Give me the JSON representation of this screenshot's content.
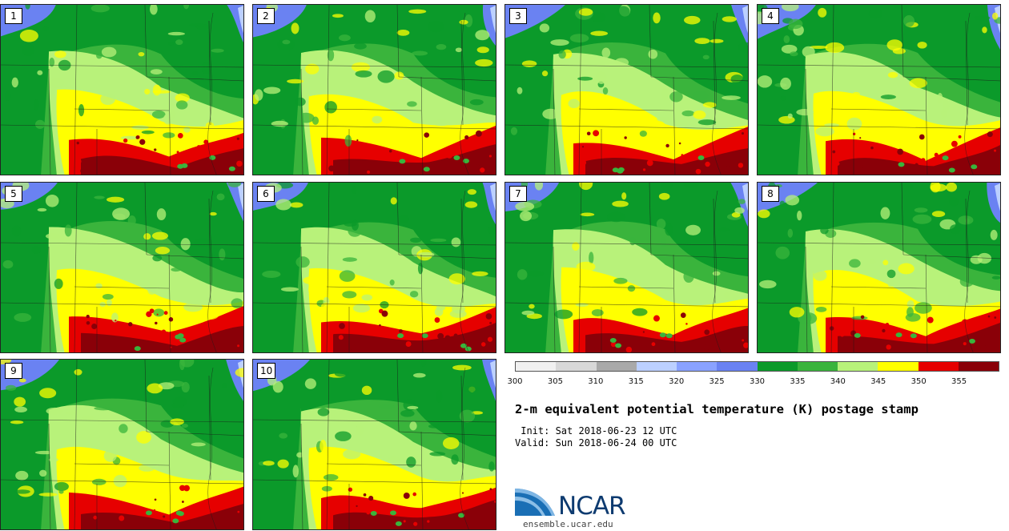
{
  "panels": [
    {
      "label": "1"
    },
    {
      "label": "2"
    },
    {
      "label": "3"
    },
    {
      "label": "4"
    },
    {
      "label": "5"
    },
    {
      "label": "6"
    },
    {
      "label": "7"
    },
    {
      "label": "8"
    },
    {
      "label": "9"
    },
    {
      "label": "10"
    }
  ],
  "colorbar": {
    "colors": [
      "#f0f0f0",
      "#d8d8d8",
      "#a9a9a9",
      "#bcd0ff",
      "#8aa2ff",
      "#6a82f2",
      "#0b9a2a",
      "#3ab43c",
      "#b8f27a",
      "#ffff00",
      "#e60000",
      "#8a0008"
    ],
    "ticks": [
      "300",
      "305",
      "310",
      "315",
      "320",
      "325",
      "330",
      "335",
      "340",
      "345",
      "350",
      "355"
    ]
  },
  "palette": {
    "dark_green": "#0b9a2a",
    "mid_green": "#3ab43c",
    "light_green": "#b8f27a",
    "yellow": "#ffff00",
    "red": "#e60000",
    "dark_red": "#8a0008",
    "blue": "#6a82f2",
    "light_blue": "#bcd0ff"
  },
  "title": "2-m equivalent potential temperature (K) postage stamp",
  "init_line": " Init: Sat 2018-06-23 12 UTC",
  "valid_line": "Valid: Sun 2018-06-24 00 UTC",
  "logo": {
    "text": "NCAR",
    "color": "#0e3b70"
  },
  "url": "ensemble.ucar.edu"
}
